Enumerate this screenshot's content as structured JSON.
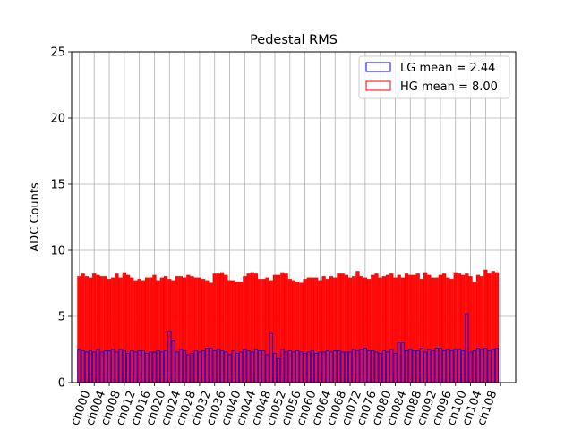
{
  "chart_data": {
    "type": "bar",
    "title": "Pedestal RMS",
    "xlabel": "",
    "ylabel": "ADC Counts",
    "ylim": [
      0,
      25
    ],
    "yticks": [
      0,
      5,
      10,
      15,
      20,
      25
    ],
    "xlim": [
      -2,
      116
    ],
    "grid": true,
    "legend_position": "top-right",
    "x_tick_labels": [
      "ch000",
      "ch004",
      "ch008",
      "ch012",
      "ch016",
      "ch020",
      "ch024",
      "ch028",
      "ch032",
      "ch036",
      "ch040",
      "ch044",
      "ch048",
      "ch052",
      "ch056",
      "ch060",
      "ch064",
      "ch068",
      "ch072",
      "ch076",
      "ch080",
      "ch084",
      "ch088",
      "ch092",
      "ch096",
      "ch100",
      "ch104",
      "ch108",
      ""
    ],
    "x_tick_positions": [
      0,
      4,
      8,
      12,
      16,
      20,
      24,
      28,
      32,
      36,
      40,
      44,
      48,
      52,
      56,
      60,
      64,
      68,
      72,
      76,
      80,
      84,
      88,
      92,
      96,
      100,
      104,
      108,
      112
    ],
    "series": [
      {
        "name": "HG mean = 8.00",
        "edge_color": "#ff0000",
        "face_color": "#ff0000",
        "face_alpha": 0.95,
        "values": [
          8.0,
          8.2,
          8.0,
          7.9,
          8.2,
          8.1,
          8.0,
          8.0,
          7.8,
          7.9,
          8.2,
          7.9,
          8.3,
          8.1,
          7.9,
          7.7,
          7.8,
          7.7,
          7.9,
          7.9,
          8.1,
          7.7,
          7.9,
          8.0,
          7.8,
          7.7,
          8.0,
          8.0,
          7.9,
          8.1,
          8.0,
          7.9,
          7.9,
          7.8,
          7.7,
          7.5,
          8.2,
          8.2,
          8.3,
          8.1,
          7.7,
          7.7,
          7.6,
          7.6,
          8.0,
          8.2,
          8.3,
          8.2,
          7.8,
          7.8,
          7.9,
          7.7,
          8.1,
          8.1,
          8.3,
          8.2,
          7.8,
          7.7,
          7.6,
          7.5,
          7.8,
          7.9,
          7.9,
          7.9,
          7.7,
          8.0,
          7.8,
          8.0,
          7.9,
          8.2,
          8.2,
          8.1,
          7.9,
          8.0,
          8.4,
          8.0,
          7.9,
          7.8,
          8.1,
          8.2,
          7.9,
          8.0,
          8.1,
          8.2,
          7.9,
          8.1,
          7.9,
          8.2,
          8.1,
          8.1,
          8.2,
          7.8,
          8.3,
          8.1,
          7.9,
          7.9,
          8.1,
          8.2,
          7.9,
          7.8,
          8.3,
          8.2,
          8.1,
          8.2,
          8.0,
          7.6,
          8.1,
          8.0,
          8.5,
          8.2,
          8.4,
          8.3
        ]
      },
      {
        "name": "LG mean = 2.44",
        "edge_color": "#0000ff",
        "face_color": "#ffffff",
        "face_alpha": 0,
        "values": [
          2.5,
          2.4,
          2.3,
          2.4,
          2.3,
          2.5,
          2.3,
          2.4,
          2.4,
          2.5,
          2.3,
          2.5,
          2.4,
          2.2,
          2.4,
          2.3,
          2.4,
          2.4,
          2.2,
          2.3,
          2.3,
          2.4,
          2.3,
          2.4,
          3.9,
          3.2,
          2.3,
          2.5,
          2.4,
          2.1,
          2.2,
          2.4,
          2.3,
          2.4,
          2.6,
          2.6,
          2.4,
          2.5,
          2.4,
          2.3,
          2.1,
          2.4,
          2.2,
          2.3,
          2.5,
          2.4,
          2.3,
          2.5,
          2.4,
          2.4,
          2.1,
          3.7,
          2.2,
          1.8,
          2.5,
          2.3,
          2.4,
          2.3,
          2.4,
          2.3,
          2.2,
          2.3,
          2.4,
          2.2,
          2.3,
          2.3,
          2.4,
          2.3,
          2.4,
          2.4,
          2.3,
          2.3,
          2.3,
          2.5,
          2.4,
          2.5,
          2.6,
          2.4,
          2.4,
          2.3,
          2.2,
          2.4,
          2.3,
          2.5,
          2.2,
          3.0,
          3.0,
          2.4,
          2.5,
          2.4,
          2.4,
          2.6,
          2.3,
          2.5,
          2.4,
          2.6,
          2.6,
          2.4,
          2.5,
          2.4,
          2.5,
          2.5,
          2.4,
          5.2,
          2.3,
          2.4,
          2.6,
          2.5,
          2.6,
          2.4,
          2.5,
          2.6
        ]
      }
    ]
  }
}
